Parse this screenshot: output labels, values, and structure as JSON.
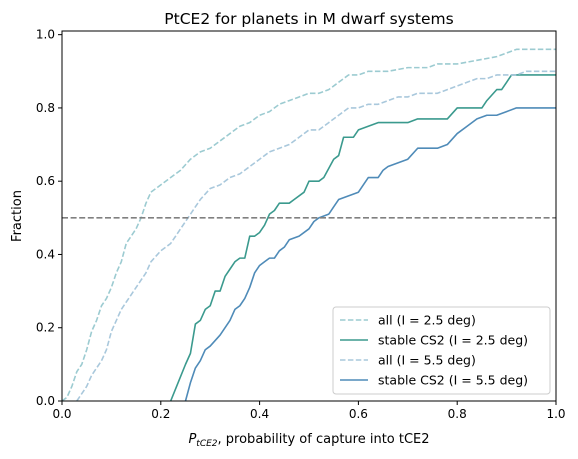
{
  "chart_data": {
    "type": "line",
    "title": "PtCE2 for planets in M dwarf systems",
    "xlabel": {
      "symbol": "P",
      "subscript": "tCE2",
      "rest": ", probability of capture into tCE2"
    },
    "ylabel": "Fraction",
    "xlim": [
      0,
      1
    ],
    "ylim": [
      0,
      1.01
    ],
    "x_ticks": [
      "0.0",
      "0.2",
      "0.4",
      "0.6",
      "0.8",
      "1.0"
    ],
    "y_ticks": [
      "0.0",
      "0.2",
      "0.4",
      "0.6",
      "0.8",
      "1.0"
    ],
    "grid": false,
    "legend_position": "lower-right",
    "reference_line": {
      "y": 0.5,
      "style": "dashed",
      "color": "#808080"
    },
    "series": [
      {
        "name": "all (I = 2.5 deg)",
        "color": "#9ccbd1",
        "dash": true,
        "points": [
          [
            0,
            0
          ],
          [
            0.01,
            0.01
          ],
          [
            0.02,
            0.04
          ],
          [
            0.03,
            0.08
          ],
          [
            0.04,
            0.1
          ],
          [
            0.05,
            0.14
          ],
          [
            0.06,
            0.19
          ],
          [
            0.07,
            0.22
          ],
          [
            0.08,
            0.26
          ],
          [
            0.09,
            0.28
          ],
          [
            0.1,
            0.31
          ],
          [
            0.11,
            0.35
          ],
          [
            0.12,
            0.38
          ],
          [
            0.13,
            0.43
          ],
          [
            0.14,
            0.45
          ],
          [
            0.15,
            0.47
          ],
          [
            0.16,
            0.5
          ],
          [
            0.17,
            0.54
          ],
          [
            0.18,
            0.57
          ],
          [
            0.2,
            0.59
          ],
          [
            0.22,
            0.61
          ],
          [
            0.24,
            0.63
          ],
          [
            0.26,
            0.66
          ],
          [
            0.28,
            0.68
          ],
          [
            0.3,
            0.69
          ],
          [
            0.32,
            0.71
          ],
          [
            0.34,
            0.73
          ],
          [
            0.36,
            0.75
          ],
          [
            0.38,
            0.76
          ],
          [
            0.4,
            0.78
          ],
          [
            0.42,
            0.79
          ],
          [
            0.44,
            0.81
          ],
          [
            0.46,
            0.82
          ],
          [
            0.48,
            0.83
          ],
          [
            0.5,
            0.84
          ],
          [
            0.52,
            0.84
          ],
          [
            0.54,
            0.85
          ],
          [
            0.56,
            0.87
          ],
          [
            0.58,
            0.89
          ],
          [
            0.6,
            0.89
          ],
          [
            0.62,
            0.9
          ],
          [
            0.66,
            0.9
          ],
          [
            0.7,
            0.91
          ],
          [
            0.74,
            0.91
          ],
          [
            0.76,
            0.92
          ],
          [
            0.8,
            0.92
          ],
          [
            0.84,
            0.93
          ],
          [
            0.88,
            0.94
          ],
          [
            0.9,
            0.95
          ],
          [
            0.92,
            0.96
          ],
          [
            1.0,
            0.96
          ]
        ]
      },
      {
        "name": "stable CS2 (I = 2.5 deg)",
        "color": "#3b9a8e",
        "dash": false,
        "points": [
          [
            0.22,
            0
          ],
          [
            0.25,
            0.1
          ],
          [
            0.26,
            0.13
          ],
          [
            0.27,
            0.21
          ],
          [
            0.28,
            0.22
          ],
          [
            0.29,
            0.25
          ],
          [
            0.3,
            0.26
          ],
          [
            0.31,
            0.3
          ],
          [
            0.32,
            0.3
          ],
          [
            0.33,
            0.34
          ],
          [
            0.34,
            0.36
          ],
          [
            0.35,
            0.38
          ],
          [
            0.36,
            0.39
          ],
          [
            0.37,
            0.39
          ],
          [
            0.38,
            0.45
          ],
          [
            0.39,
            0.45
          ],
          [
            0.4,
            0.46
          ],
          [
            0.41,
            0.48
          ],
          [
            0.42,
            0.51
          ],
          [
            0.43,
            0.52
          ],
          [
            0.44,
            0.54
          ],
          [
            0.46,
            0.54
          ],
          [
            0.47,
            0.55
          ],
          [
            0.49,
            0.57
          ],
          [
            0.5,
            0.6
          ],
          [
            0.52,
            0.6
          ],
          [
            0.53,
            0.61
          ],
          [
            0.55,
            0.66
          ],
          [
            0.56,
            0.67
          ],
          [
            0.57,
            0.72
          ],
          [
            0.59,
            0.72
          ],
          [
            0.6,
            0.74
          ],
          [
            0.62,
            0.75
          ],
          [
            0.64,
            0.76
          ],
          [
            0.66,
            0.76
          ],
          [
            0.7,
            0.76
          ],
          [
            0.72,
            0.77
          ],
          [
            0.74,
            0.77
          ],
          [
            0.78,
            0.77
          ],
          [
            0.8,
            0.8
          ],
          [
            0.85,
            0.8
          ],
          [
            0.86,
            0.82
          ],
          [
            0.88,
            0.85
          ],
          [
            0.89,
            0.85
          ],
          [
            0.9,
            0.87
          ],
          [
            0.91,
            0.89
          ],
          [
            0.92,
            0.89
          ],
          [
            1.0,
            0.89
          ]
        ]
      },
      {
        "name": "all (I = 5.5 deg)",
        "color": "#a9c8dc",
        "dash": true,
        "points": [
          [
            0.03,
            0
          ],
          [
            0.05,
            0.04
          ],
          [
            0.06,
            0.07
          ],
          [
            0.07,
            0.09
          ],
          [
            0.08,
            0.11
          ],
          [
            0.09,
            0.14
          ],
          [
            0.1,
            0.19
          ],
          [
            0.11,
            0.22
          ],
          [
            0.12,
            0.25
          ],
          [
            0.13,
            0.27
          ],
          [
            0.14,
            0.29
          ],
          [
            0.15,
            0.31
          ],
          [
            0.16,
            0.33
          ],
          [
            0.17,
            0.35
          ],
          [
            0.18,
            0.38
          ],
          [
            0.2,
            0.41
          ],
          [
            0.22,
            0.43
          ],
          [
            0.24,
            0.47
          ],
          [
            0.26,
            0.51
          ],
          [
            0.28,
            0.55
          ],
          [
            0.3,
            0.58
          ],
          [
            0.32,
            0.59
          ],
          [
            0.34,
            0.61
          ],
          [
            0.36,
            0.62
          ],
          [
            0.38,
            0.64
          ],
          [
            0.4,
            0.66
          ],
          [
            0.42,
            0.68
          ],
          [
            0.44,
            0.69
          ],
          [
            0.46,
            0.7
          ],
          [
            0.48,
            0.72
          ],
          [
            0.5,
            0.74
          ],
          [
            0.52,
            0.74
          ],
          [
            0.54,
            0.76
          ],
          [
            0.56,
            0.78
          ],
          [
            0.58,
            0.8
          ],
          [
            0.6,
            0.8
          ],
          [
            0.62,
            0.81
          ],
          [
            0.64,
            0.81
          ],
          [
            0.66,
            0.82
          ],
          [
            0.68,
            0.83
          ],
          [
            0.7,
            0.83
          ],
          [
            0.72,
            0.84
          ],
          [
            0.76,
            0.84
          ],
          [
            0.78,
            0.85
          ],
          [
            0.8,
            0.86
          ],
          [
            0.82,
            0.87
          ],
          [
            0.84,
            0.88
          ],
          [
            0.86,
            0.88
          ],
          [
            0.88,
            0.89
          ],
          [
            0.92,
            0.89
          ],
          [
            0.94,
            0.9
          ],
          [
            1.0,
            0.9
          ]
        ]
      },
      {
        "name": "stable CS2 (I = 5.5 deg)",
        "color": "#4f8bb8",
        "dash": false,
        "points": [
          [
            0.25,
            0
          ],
          [
            0.26,
            0.05
          ],
          [
            0.27,
            0.09
          ],
          [
            0.28,
            0.11
          ],
          [
            0.29,
            0.14
          ],
          [
            0.3,
            0.15
          ],
          [
            0.32,
            0.18
          ],
          [
            0.34,
            0.22
          ],
          [
            0.35,
            0.25
          ],
          [
            0.36,
            0.26
          ],
          [
            0.37,
            0.28
          ],
          [
            0.38,
            0.31
          ],
          [
            0.39,
            0.35
          ],
          [
            0.4,
            0.37
          ],
          [
            0.41,
            0.38
          ],
          [
            0.42,
            0.39
          ],
          [
            0.43,
            0.39
          ],
          [
            0.44,
            0.41
          ],
          [
            0.45,
            0.42
          ],
          [
            0.46,
            0.44
          ],
          [
            0.48,
            0.45
          ],
          [
            0.5,
            0.47
          ],
          [
            0.51,
            0.49
          ],
          [
            0.52,
            0.5
          ],
          [
            0.54,
            0.51
          ],
          [
            0.55,
            0.53
          ],
          [
            0.56,
            0.55
          ],
          [
            0.58,
            0.56
          ],
          [
            0.6,
            0.57
          ],
          [
            0.62,
            0.61
          ],
          [
            0.64,
            0.61
          ],
          [
            0.65,
            0.63
          ],
          [
            0.66,
            0.64
          ],
          [
            0.68,
            0.65
          ],
          [
            0.7,
            0.66
          ],
          [
            0.72,
            0.69
          ],
          [
            0.76,
            0.69
          ],
          [
            0.78,
            0.7
          ],
          [
            0.8,
            0.73
          ],
          [
            0.82,
            0.75
          ],
          [
            0.84,
            0.77
          ],
          [
            0.86,
            0.78
          ],
          [
            0.88,
            0.78
          ],
          [
            0.9,
            0.79
          ],
          [
            0.92,
            0.8
          ],
          [
            1.0,
            0.8
          ]
        ]
      }
    ]
  }
}
